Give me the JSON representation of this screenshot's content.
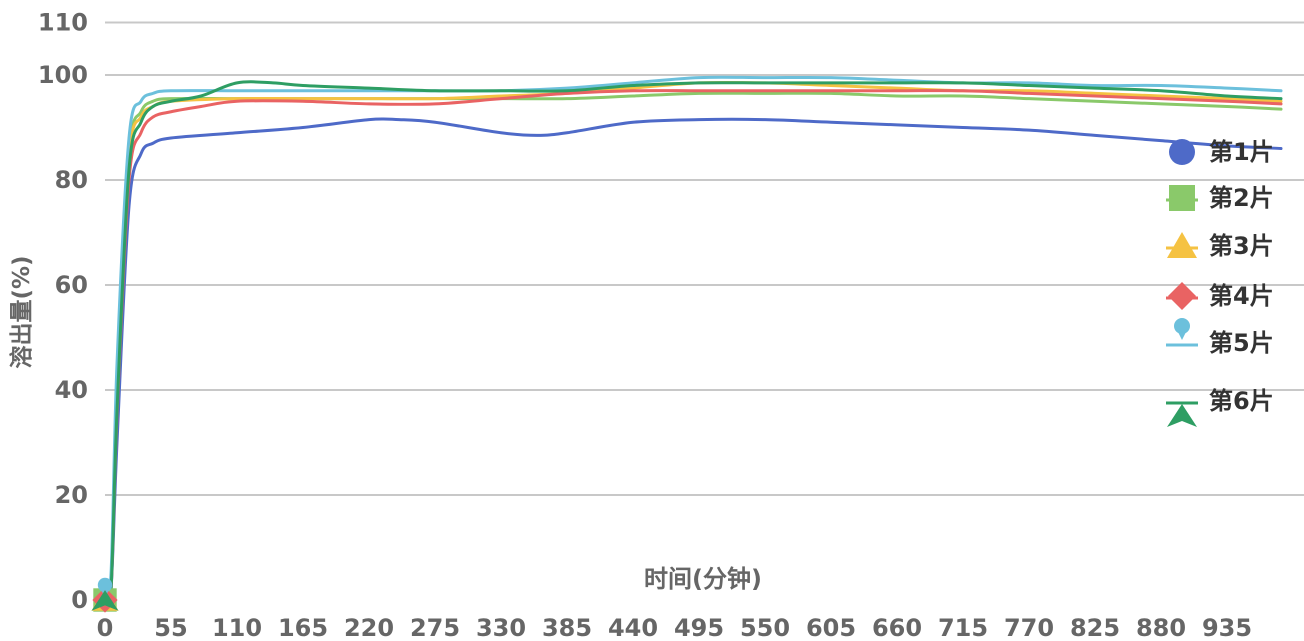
{
  "chart_data": {
    "type": "line",
    "title": "",
    "xlabel": "时间(分钟)",
    "ylabel": "溶出量(%)",
    "x_ticks": [
      "0",
      "55",
      "110",
      "165",
      "220",
      "275",
      "330",
      "385",
      "440",
      "495",
      "550",
      "605",
      "660",
      "715",
      "770",
      "825",
      "880",
      "935"
    ],
    "y_ticks": [
      "0",
      "20",
      "40",
      "60",
      "80",
      "100",
      "110"
    ],
    "xlim": [
      0,
      980
    ],
    "ylim": [
      0,
      110
    ],
    "grid": true,
    "legend_position": "right",
    "series": [
      {
        "name": "第1片",
        "color": "#4e6ac8",
        "marker": "circle",
        "points": [
          [
            0,
            0
          ],
          [
            5,
            2
          ],
          [
            10,
            30
          ],
          [
            20,
            75
          ],
          [
            30,
            85
          ],
          [
            40,
            87
          ],
          [
            55,
            88
          ],
          [
            110,
            89
          ],
          [
            165,
            90
          ],
          [
            220,
            91.5
          ],
          [
            245,
            91.5
          ],
          [
            275,
            91
          ],
          [
            330,
            89
          ],
          [
            360,
            88.5
          ],
          [
            385,
            89
          ],
          [
            440,
            91
          ],
          [
            495,
            91.5
          ],
          [
            550,
            91.5
          ],
          [
            605,
            91
          ],
          [
            660,
            90.5
          ],
          [
            715,
            90
          ],
          [
            770,
            89.5
          ],
          [
            825,
            88.5
          ],
          [
            880,
            87.5
          ],
          [
            935,
            86.5
          ],
          [
            980,
            86
          ]
        ]
      },
      {
        "name": "第2片",
        "color": "#8ac96a",
        "marker": "square",
        "points": [
          [
            0,
            0
          ],
          [
            5,
            3
          ],
          [
            10,
            40
          ],
          [
            20,
            85
          ],
          [
            30,
            93
          ],
          [
            40,
            95
          ],
          [
            55,
            95.5
          ],
          [
            110,
            95.5
          ],
          [
            165,
            95.5
          ],
          [
            220,
            95.5
          ],
          [
            275,
            95.5
          ],
          [
            330,
            95.5
          ],
          [
            385,
            95.5
          ],
          [
            440,
            96
          ],
          [
            495,
            96.5
          ],
          [
            550,
            96.5
          ],
          [
            605,
            96.5
          ],
          [
            660,
            96
          ],
          [
            715,
            96
          ],
          [
            770,
            95.5
          ],
          [
            825,
            95
          ],
          [
            880,
            94.5
          ],
          [
            935,
            94
          ],
          [
            980,
            93.5
          ]
        ]
      },
      {
        "name": "第3片",
        "color": "#f5c242",
        "marker": "triangle",
        "points": [
          [
            0,
            0
          ],
          [
            5,
            3
          ],
          [
            10,
            38
          ],
          [
            20,
            84
          ],
          [
            30,
            92
          ],
          [
            40,
            94
          ],
          [
            55,
            95
          ],
          [
            110,
            95.5
          ],
          [
            165,
            95.5
          ],
          [
            220,
            95.5
          ],
          [
            275,
            95.5
          ],
          [
            330,
            96
          ],
          [
            385,
            96.5
          ],
          [
            440,
            97.5
          ],
          [
            495,
            98.5
          ],
          [
            550,
            98.5
          ],
          [
            605,
            98
          ],
          [
            660,
            97.5
          ],
          [
            715,
            97
          ],
          [
            770,
            97
          ],
          [
            825,
            96.5
          ],
          [
            880,
            96
          ],
          [
            935,
            95.5
          ],
          [
            980,
            95
          ]
        ]
      },
      {
        "name": "第4片",
        "color": "#e96363",
        "marker": "diamond",
        "points": [
          [
            0,
            0
          ],
          [
            5,
            2
          ],
          [
            10,
            35
          ],
          [
            20,
            80
          ],
          [
            30,
            89
          ],
          [
            40,
            92
          ],
          [
            55,
            93
          ],
          [
            80,
            94
          ],
          [
            110,
            95
          ],
          [
            165,
            95
          ],
          [
            220,
            94.5
          ],
          [
            275,
            94.5
          ],
          [
            330,
            95.5
          ],
          [
            385,
            96.5
          ],
          [
            440,
            97
          ],
          [
            495,
            97
          ],
          [
            550,
            97
          ],
          [
            605,
            97
          ],
          [
            660,
            97
          ],
          [
            715,
            97
          ],
          [
            770,
            96.5
          ],
          [
            825,
            96
          ],
          [
            880,
            95.5
          ],
          [
            935,
            95
          ],
          [
            980,
            94.5
          ]
        ]
      },
      {
        "name": "第5片",
        "color": "#6cc0dc",
        "marker": "pin",
        "points": [
          [
            0,
            2
          ],
          [
            5,
            5
          ],
          [
            10,
            45
          ],
          [
            20,
            88
          ],
          [
            30,
            95
          ],
          [
            40,
            96.5
          ],
          [
            55,
            97
          ],
          [
            110,
            97
          ],
          [
            165,
            97
          ],
          [
            220,
            97
          ],
          [
            275,
            97
          ],
          [
            330,
            97
          ],
          [
            385,
            97.5
          ],
          [
            440,
            98.5
          ],
          [
            495,
            99.5
          ],
          [
            550,
            99.5
          ],
          [
            605,
            99.5
          ],
          [
            660,
            99
          ],
          [
            715,
            98.5
          ],
          [
            770,
            98.5
          ],
          [
            825,
            98
          ],
          [
            880,
            98
          ],
          [
            935,
            97.5
          ],
          [
            980,
            97
          ]
        ]
      },
      {
        "name": "第6片",
        "color": "#2e9e63",
        "marker": "arrow",
        "points": [
          [
            0,
            0
          ],
          [
            5,
            2
          ],
          [
            10,
            36
          ],
          [
            20,
            82
          ],
          [
            30,
            91
          ],
          [
            40,
            94
          ],
          [
            55,
            95
          ],
          [
            80,
            96
          ],
          [
            110,
            98.5
          ],
          [
            140,
            98.5
          ],
          [
            165,
            98
          ],
          [
            220,
            97.5
          ],
          [
            275,
            97
          ],
          [
            330,
            97
          ],
          [
            385,
            97
          ],
          [
            440,
            98
          ],
          [
            495,
            98.5
          ],
          [
            550,
            98.5
          ],
          [
            605,
            98.5
          ],
          [
            660,
            98.5
          ],
          [
            715,
            98.5
          ],
          [
            770,
            98
          ],
          [
            825,
            97.5
          ],
          [
            880,
            97
          ],
          [
            935,
            96
          ],
          [
            980,
            95.5
          ]
        ]
      }
    ]
  }
}
